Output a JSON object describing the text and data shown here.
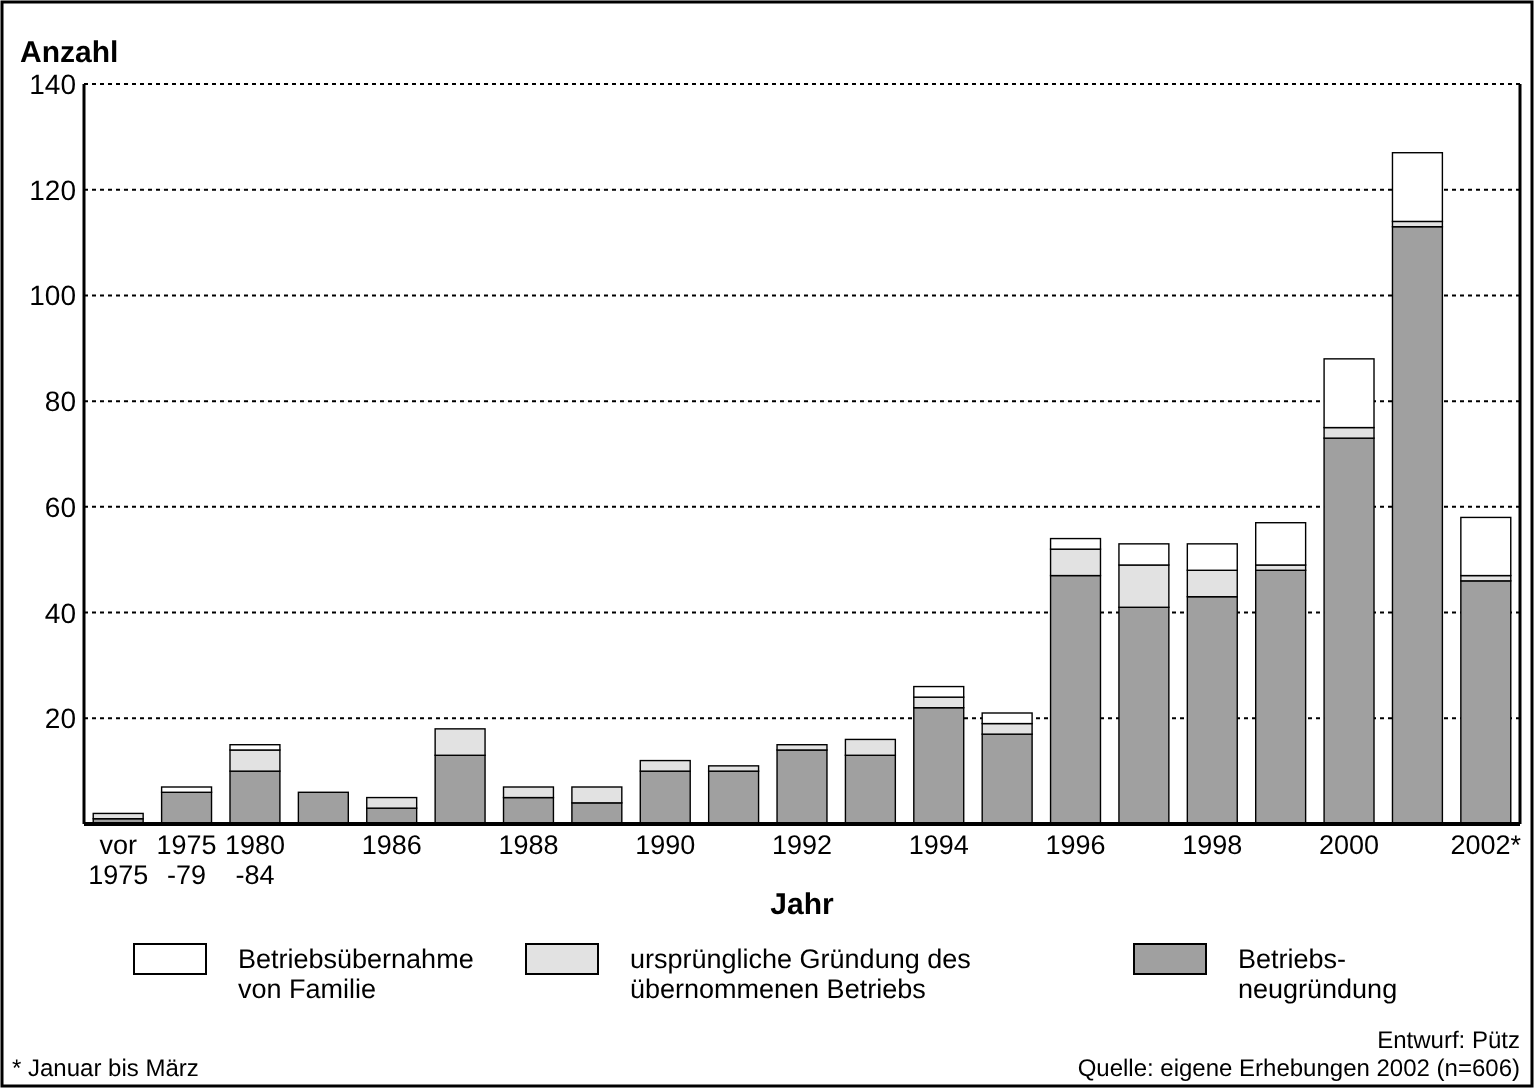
{
  "chart_data": {
    "type": "bar",
    "stacked": true,
    "ylabel": "Anzahl",
    "xlabel": "Jahr",
    "categories": [
      "vor\n1975",
      "1975\n-79",
      "1980\n-84",
      null,
      "1986",
      null,
      "1988",
      null,
      "1990",
      null,
      "1992",
      null,
      "1994",
      null,
      "1996",
      null,
      "1998",
      null,
      "2000",
      null,
      "2002*"
    ],
    "series": [
      {
        "name": "Betriebs-\nneugründung",
        "color": "#a0a0a0",
        "values": [
          1,
          6,
          10,
          6,
          3,
          13,
          5,
          4,
          10,
          10,
          14,
          13,
          22,
          17,
          47,
          41,
          43,
          48,
          73,
          113,
          46
        ]
      },
      {
        "name": "ursprüngliche Gründung des\nübernommenen Betriebs",
        "color": "#e2e2e2",
        "values": [
          1,
          0,
          4,
          0,
          2,
          5,
          2,
          3,
          2,
          1,
          1,
          3,
          2,
          2,
          5,
          8,
          5,
          1,
          2,
          1,
          1
        ]
      },
      {
        "name": "Betriebsübernahme\nvon Familie",
        "color": "#ffffff",
        "values": [
          0,
          1,
          1,
          0,
          0,
          0,
          0,
          0,
          0,
          0,
          0,
          0,
          2,
          2,
          2,
          4,
          5,
          8,
          13,
          13,
          11
        ]
      }
    ],
    "ylim": [
      0,
      140
    ],
    "yticks": [
      20,
      40,
      60,
      80,
      100,
      120,
      140
    ],
    "grid": "y",
    "legend": "bottom",
    "annotations": [
      "* Januar bis März",
      "Entwurf: Pütz",
      "Quelle: eigene Erhebungen 2002 (n=606)"
    ]
  }
}
